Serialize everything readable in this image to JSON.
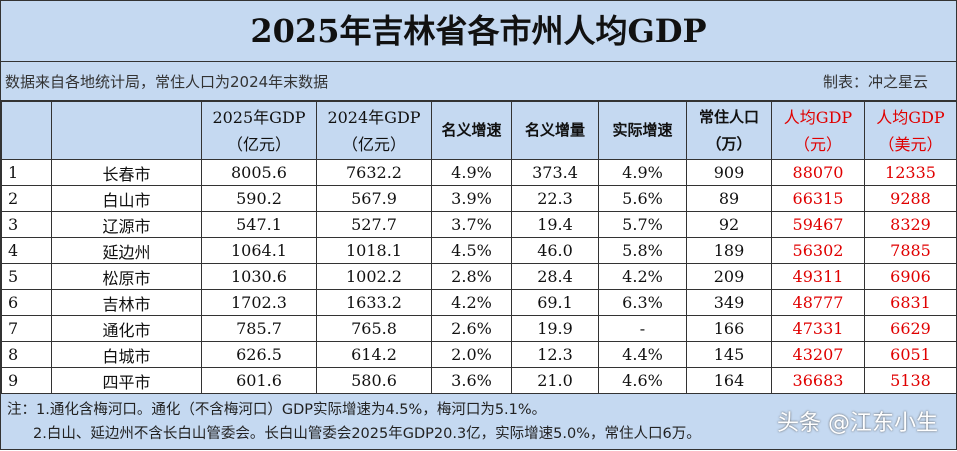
{
  "title": "2025年吉林省各市州人均GDP",
  "source": "数据来自各地统计局，常住人口为2024年末数据",
  "maker": "制表：冲之星云",
  "headers": [
    {
      "l1": "2025年GDP",
      "l2": "（亿元）"
    },
    {
      "l1": "2024年GDP",
      "l2": "（亿元）"
    },
    {
      "l1": "名义增速"
    },
    {
      "l1": "名义增量"
    },
    {
      "l1": "实际增速"
    },
    {
      "l1": "常住人口",
      "l2": "（万）"
    },
    {
      "l1": "人均GDP",
      "l2": "（元）"
    },
    {
      "l1": "人均GDP",
      "l2": "（美元）"
    }
  ],
  "rows": [
    [
      "1",
      "长春市",
      "8005.6",
      "7632.2",
      "4.9%",
      "373.4",
      "4.9%",
      "909",
      "88070",
      "12335"
    ],
    [
      "2",
      "白山市",
      "590.2",
      "567.9",
      "3.9%",
      "22.3",
      "5.6%",
      "89",
      "66315",
      "9288"
    ],
    [
      "3",
      "辽源市",
      "547.1",
      "527.7",
      "3.7%",
      "19.4",
      "5.7%",
      "92",
      "59467",
      "8329"
    ],
    [
      "4",
      "延边州",
      "1064.1",
      "1018.1",
      "4.5%",
      "46.0",
      "5.8%",
      "189",
      "56302",
      "7885"
    ],
    [
      "5",
      "松原市",
      "1030.6",
      "1002.2",
      "2.8%",
      "28.4",
      "4.2%",
      "209",
      "49311",
      "6906"
    ],
    [
      "6",
      "吉林市",
      "1702.3",
      "1633.2",
      "4.2%",
      "69.1",
      "6.3%",
      "349",
      "48777",
      "6831"
    ],
    [
      "7",
      "通化市",
      "785.7",
      "765.8",
      "2.6%",
      "19.9",
      "-",
      "166",
      "47331",
      "6629"
    ],
    [
      "8",
      "白城市",
      "626.5",
      "614.2",
      "2.0%",
      "12.3",
      "4.4%",
      "145",
      "43207",
      "6051"
    ],
    [
      "9",
      "四平市",
      "601.6",
      "580.6",
      "3.6%",
      "21.0",
      "4.6%",
      "164",
      "36683",
      "5138"
    ]
  ],
  "notes": [
    "注：1.通化含梅河口。通化（不含梅河口）GDP实际增速为4.5%，梅河口为5.1%。",
    "2.白山、延边州不含长白山管委会。长白山管委会2025年GDP20.3亿，实际增速5.0%，常住人口6万。"
  ],
  "watermark": "头条 @江东小生",
  "colors": {
    "header_bg": "#c5d9f1",
    "highlight": "#e00000"
  }
}
